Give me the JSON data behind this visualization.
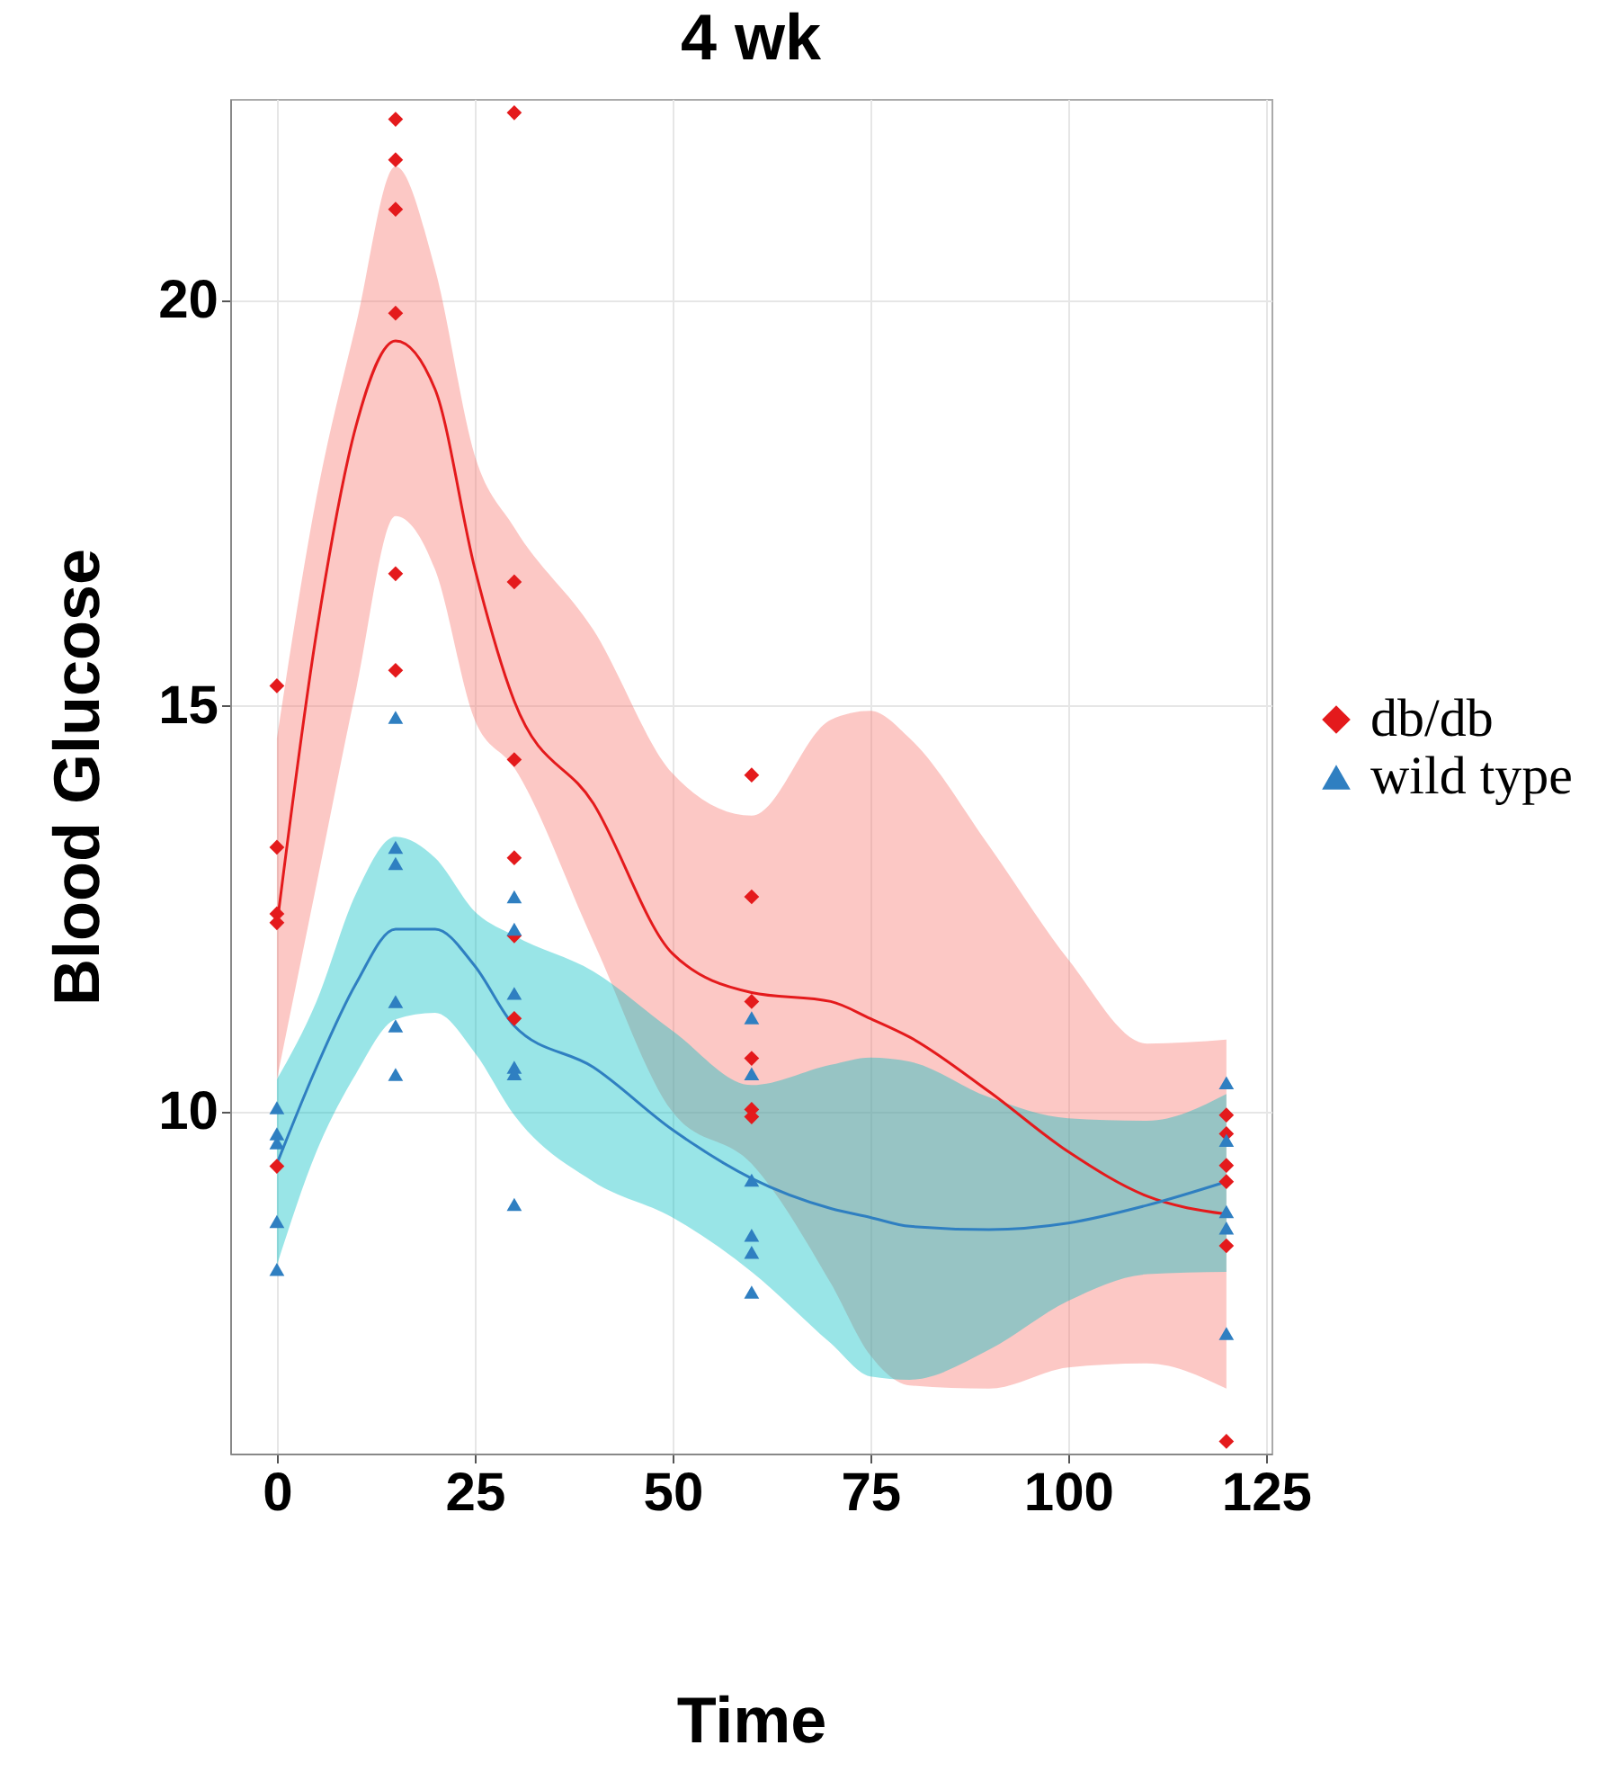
{
  "chart_data": {
    "type": "scatter",
    "title": "4 wk",
    "xlabel": "Time",
    "ylabel": "Blood Glucose",
    "xlim": [
      -5.9,
      125.7
    ],
    "ylim": [
      5.79,
      22.48
    ],
    "xticks": [
      0,
      25,
      50,
      75,
      100,
      125
    ],
    "yticks": [
      10,
      15,
      20
    ],
    "grid": true,
    "legend": "right",
    "series": [
      {
        "name": "db/db",
        "marker": "diamond",
        "color": "#e41a1c",
        "x": [
          0,
          0,
          0,
          0,
          0,
          15,
          15,
          15,
          15,
          15,
          15,
          30,
          30,
          30,
          30,
          30,
          30,
          60,
          60,
          60,
          60,
          60,
          60,
          120,
          120,
          120,
          120,
          120,
          120
        ],
        "values": [
          15.25,
          13.26,
          12.44,
          12.33,
          9.33,
          22.23,
          21.73,
          21.12,
          19.84,
          16.63,
          15.44,
          22.31,
          16.53,
          14.34,
          13.13,
          12.17,
          11.15,
          14.15,
          12.65,
          11.36,
          10.66,
          10.03,
          9.94,
          9.96,
          9.73,
          9.34,
          9.14,
          8.35,
          5.94
        ]
      },
      {
        "name": "wild type",
        "marker": "triangle",
        "color": "#2f7fc1",
        "x": [
          0,
          0,
          0,
          0,
          0,
          15,
          15,
          15,
          15,
          15,
          15,
          30,
          30,
          30,
          30,
          30,
          30,
          60,
          60,
          60,
          60,
          60,
          60,
          120,
          120,
          120,
          120,
          120
        ],
        "values": [
          10.05,
          9.73,
          9.62,
          8.65,
          8.06,
          14.86,
          13.26,
          13.06,
          11.36,
          11.06,
          10.46,
          12.65,
          12.25,
          11.46,
          10.55,
          10.47,
          8.86,
          11.16,
          10.47,
          9.16,
          8.48,
          8.27,
          7.78,
          10.36,
          9.65,
          8.77,
          8.57,
          7.27
        ]
      },
      {
        "type": "line",
        "color": "#e41a1c",
        "x": [
          0,
          5,
          10,
          15,
          20,
          25,
          30,
          40,
          50,
          60,
          70,
          75,
          80,
          90,
          100,
          110,
          120
        ],
        "values": [
          12.3,
          15.9,
          18.45,
          19.5,
          18.9,
          16.7,
          15.06,
          13.8,
          11.95,
          11.47,
          11.36,
          11.15,
          10.92,
          10.25,
          9.51,
          8.96,
          8.74
        ],
        "lower": [
          10.4,
          12.8,
          15.2,
          17.34,
          16.68,
          14.83,
          14.24,
          12.1,
          10.0,
          9.36,
          7.89,
          7.0,
          6.63,
          6.59,
          6.85,
          6.9,
          6.59
        ],
        "upper": [
          14.6,
          17.57,
          19.7,
          21.65,
          20.38,
          18.09,
          17.2,
          15.94,
          14.17,
          13.65,
          14.83,
          14.94,
          14.6,
          13.28,
          11.88,
          10.84,
          10.89
        ]
      },
      {
        "type": "line",
        "color": "#2f7fc1",
        "x": [
          0,
          5,
          10,
          15,
          20,
          25,
          30,
          40,
          50,
          60,
          70,
          75,
          80,
          90,
          100,
          110,
          120
        ],
        "values": [
          9.36,
          10.55,
          11.58,
          12.25,
          12.25,
          11.8,
          11.06,
          10.55,
          9.78,
          9.18,
          8.81,
          8.7,
          8.59,
          8.55,
          8.63,
          8.85,
          9.14
        ],
        "lower": [
          8.11,
          9.51,
          10.47,
          11.14,
          11.22,
          10.73,
          9.96,
          9.14,
          8.7,
          8.03,
          7.15,
          6.74,
          6.7,
          7.07,
          7.67,
          8.0,
          8.03
        ],
        "upper": [
          10.4,
          11.36,
          12.69,
          13.39,
          13.13,
          12.47,
          12.17,
          11.73,
          11.0,
          10.33,
          10.58,
          10.67,
          10.62,
          10.18,
          9.92,
          9.89,
          10.22
        ]
      }
    ]
  }
}
